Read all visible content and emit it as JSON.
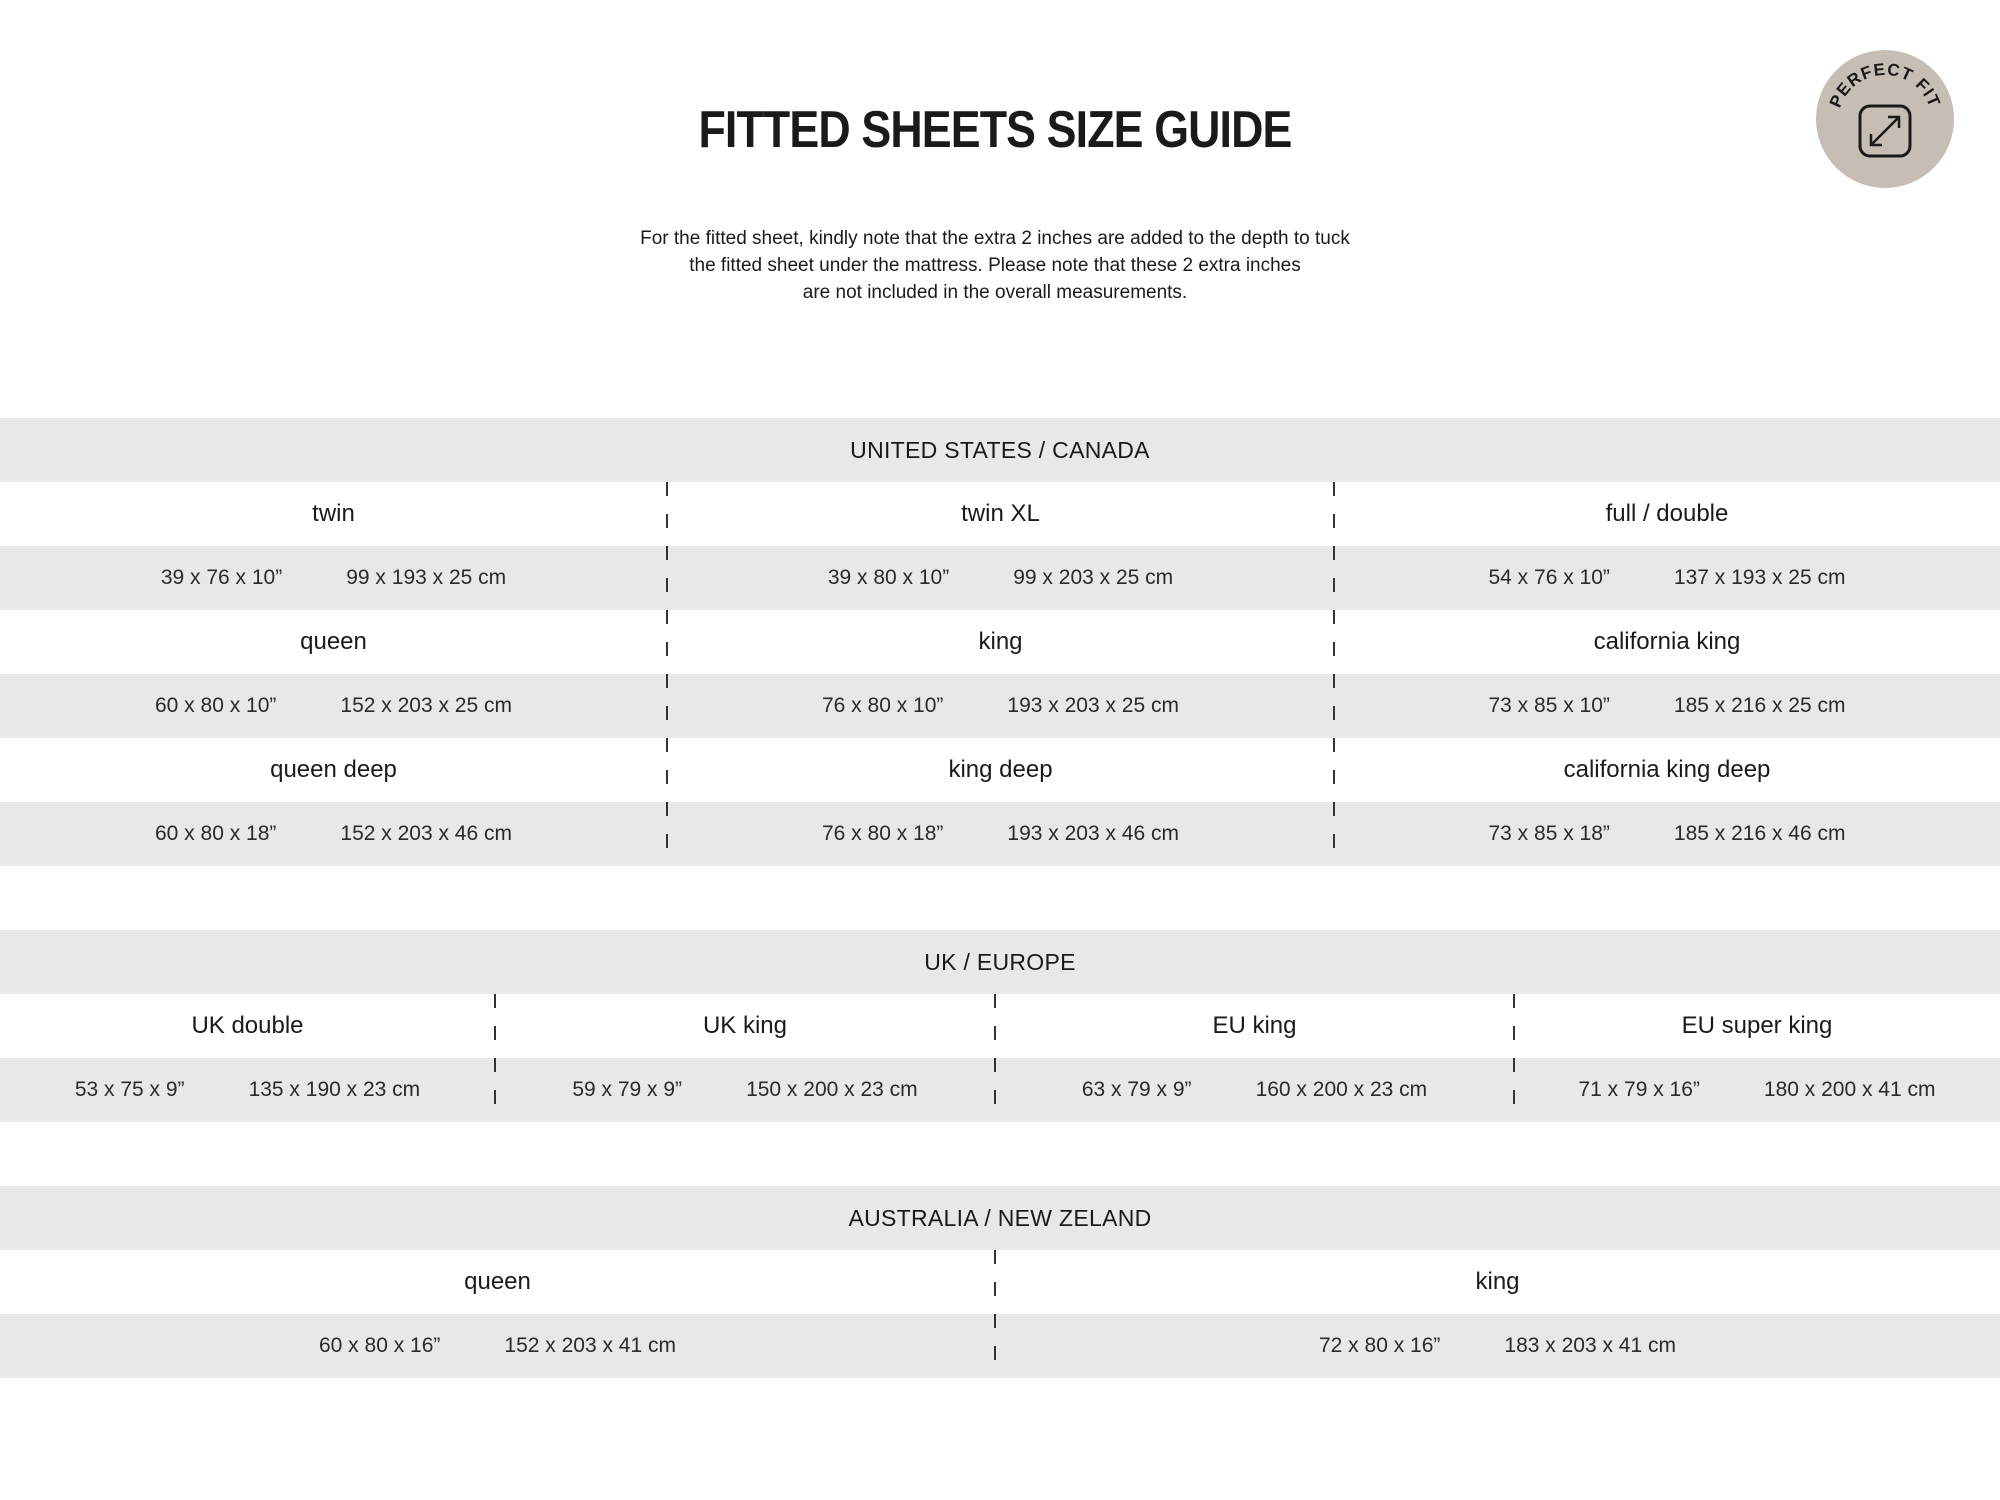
{
  "title": "FITTED SHEETS SIZE GUIDE",
  "note": [
    "For the fitted sheet, kindly note that the extra 2 inches are added to the depth to tuck",
    "the fitted sheet under the mattress. Please note that these 2 extra inches",
    "are not included in the overall measurements."
  ],
  "badge": {
    "text": "PERFECT FIT",
    "icon": "resize-arrows-icon",
    "color": "#c6bdb4"
  },
  "band_color": "#e8e8e8",
  "sections": [
    {
      "heading": "UNITED STATES / CANADA",
      "sizes": [
        {
          "name": "twin",
          "inches": "39 x 76 x 10”",
          "cm": "99 x 193 x 25 cm"
        },
        {
          "name": "twin XL",
          "inches": "39 x 80 x 10”",
          "cm": "99 x 203 x 25 cm"
        },
        {
          "name": "full / double",
          "inches": "54 x 76 x 10”",
          "cm": "137 x 193 x 25 cm"
        },
        {
          "name": "queen",
          "inches": "60 x 80 x 10”",
          "cm": "152 x 203 x 25 cm"
        },
        {
          "name": "king",
          "inches": "76 x 80 x 10”",
          "cm": "193 x 203 x 25 cm"
        },
        {
          "name": "california king",
          "inches": "73 x 85 x 10”",
          "cm": "185 x 216 x 25 cm"
        },
        {
          "name": "queen deep",
          "inches": "60 x 80 x 18”",
          "cm": "152 x 203 x 46 cm"
        },
        {
          "name": "king deep",
          "inches": "76 x 80 x 18”",
          "cm": "193 x 203 x 46 cm"
        },
        {
          "name": "california king deep",
          "inches": "73 x 85 x 18”",
          "cm": "185 x 216 x 46 cm"
        }
      ]
    },
    {
      "heading": "UK / EUROPE",
      "sizes": [
        {
          "name": "UK double",
          "inches": "53 x 75 x 9”",
          "cm": "135 x 190 x 23 cm"
        },
        {
          "name": "UK king",
          "inches": "59 x 79 x 9”",
          "cm": "150 x 200 x 23 cm"
        },
        {
          "name": "EU king",
          "inches": "63 x 79 x 9”",
          "cm": "160 x 200 x 23 cm"
        },
        {
          "name": "EU super king",
          "inches": "71 x 79 x 16”",
          "cm": "180 x 200 x 41 cm"
        }
      ]
    },
    {
      "heading": "AUSTRALIA / NEW ZELAND",
      "sizes": [
        {
          "name": "queen",
          "inches": "60 x 80 x 16”",
          "cm": "152 x 203 x 41 cm"
        },
        {
          "name": "king",
          "inches": "72 x 80 x 16”",
          "cm": "183 x 203 x 41 cm"
        }
      ]
    }
  ]
}
